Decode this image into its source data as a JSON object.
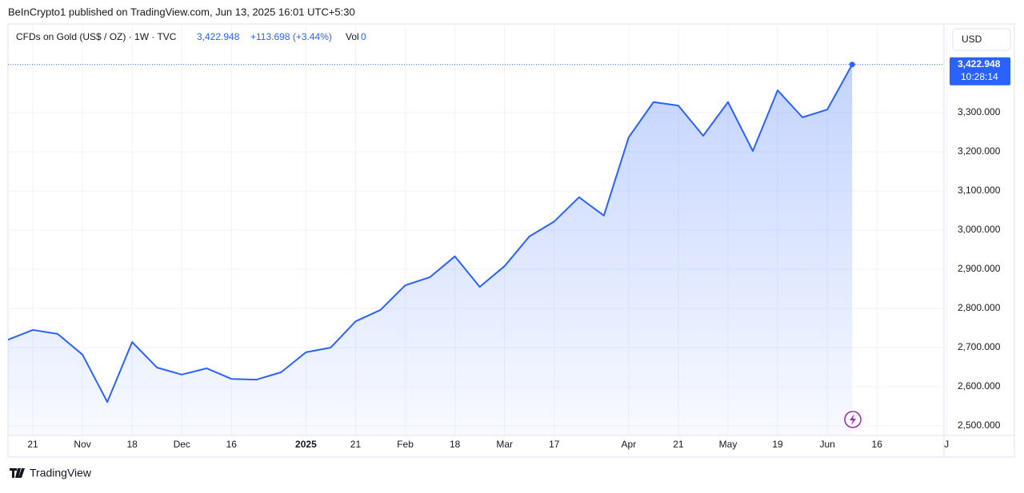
{
  "header": "BeInCrypto1 published on TradingView.com, Jun 13, 2025 16:01 UTC+5:30",
  "footer": "TradingView",
  "currency_button": "USD",
  "legend": {
    "price": "3,422.948",
    "change": "+113.698 (+3.44%)",
    "vol_label": "Vol",
    "vol": "0"
  },
  "countdown": "10:28:14",
  "chart_data": {
    "type": "area",
    "series": [
      {
        "name": "CFDs on Gold (US$ / OZ) · 1W · TVC",
        "color": "#2962ff",
        "x": [
          0,
          1,
          2,
          3,
          4,
          5,
          6,
          7,
          8,
          9,
          10,
          11,
          12,
          13,
          14,
          15,
          16,
          17,
          18,
          19,
          20,
          21,
          22,
          23,
          24,
          25,
          26,
          27,
          28,
          29,
          30,
          31,
          32,
          33,
          34
        ],
        "values": [
          2720,
          2745,
          2735,
          2682,
          2561,
          2714,
          2649,
          2631,
          2647,
          2620,
          2618,
          2637,
          2688,
          2700,
          2767,
          2796,
          2859,
          2880,
          2933,
          2855,
          2908,
          2984,
          3022,
          3084,
          3037,
          3237,
          3327,
          3318,
          3241,
          3327,
          3202,
          3357,
          3288,
          3308,
          3422.948
        ]
      }
    ],
    "xlim": [
      0,
      37.7
    ],
    "xticks": [
      {
        "value": 1,
        "label": "21"
      },
      {
        "value": 3,
        "label": "Nov"
      },
      {
        "value": 5,
        "label": "18"
      },
      {
        "value": 7,
        "label": "Dec"
      },
      {
        "value": 9,
        "label": "16"
      },
      {
        "value": 12,
        "label": "2025"
      },
      {
        "value": 14,
        "label": "21"
      },
      {
        "value": 16,
        "label": "Feb"
      },
      {
        "value": 18,
        "label": "18"
      },
      {
        "value": 20,
        "label": "Mar"
      },
      {
        "value": 22,
        "label": "17"
      },
      {
        "value": 25,
        "label": "Apr"
      },
      {
        "value": 27,
        "label": "21"
      },
      {
        "value": 29,
        "label": "May"
      },
      {
        "value": 31,
        "label": "19"
      },
      {
        "value": 33,
        "label": "Jun"
      },
      {
        "value": 35,
        "label": "16"
      },
      {
        "value": 37.8,
        "label": "J"
      }
    ],
    "ylim": [
      2475.5,
      3526.5
    ],
    "yticks": [
      {
        "value": 2500,
        "label": "2,500.000"
      },
      {
        "value": 2600,
        "label": "2,600.000"
      },
      {
        "value": 2700,
        "label": "2,700.000"
      },
      {
        "value": 2800,
        "label": "2,800.000"
      },
      {
        "value": 2900,
        "label": "2,900.000"
      },
      {
        "value": 3000,
        "label": "3,000.000"
      },
      {
        "value": 3100,
        "label": "3,100.000"
      },
      {
        "value": 3200,
        "label": "3,200.000"
      },
      {
        "value": 3300,
        "label": "3,300.000"
      }
    ],
    "grid": true
  }
}
